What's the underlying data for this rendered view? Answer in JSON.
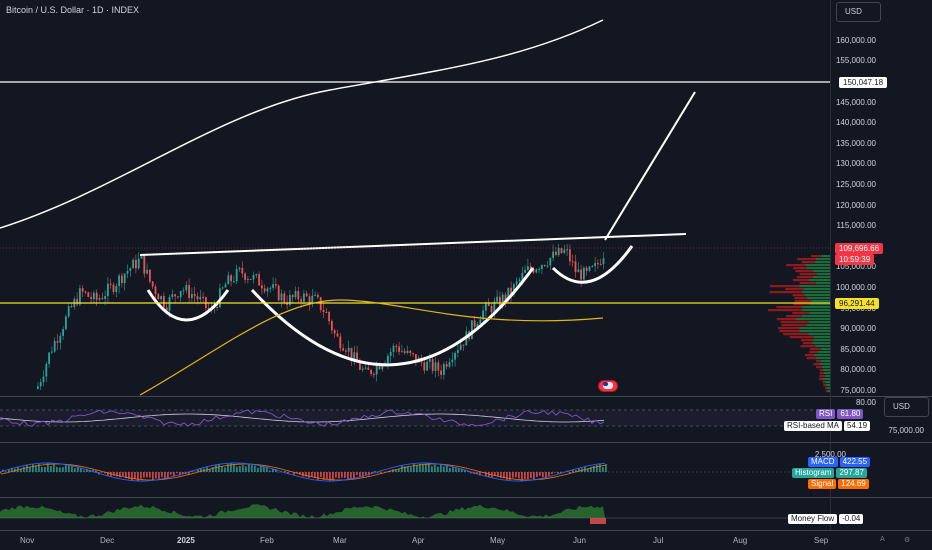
{
  "header": {
    "title": "Bitcoin / U.S. Dollar · 1D · INDEX",
    "currency_button": "USD",
    "currency_button_2": "USD"
  },
  "price_axis": {
    "labels": [
      "160,000.00",
      "155,000.00",
      "145,000.00",
      "140,000.00",
      "135,000.00",
      "130,000.00",
      "125,000.00",
      "120,000.00",
      "115,000.00",
      "110,000.00",
      "105,000.00",
      "100,000.00",
      "95,000.00",
      "90,000.00",
      "85,000.00",
      "80,000.00",
      "75,000.00"
    ],
    "tags": {
      "resistance": "150,047.18",
      "last_price": "109,696.66",
      "countdown": "10:59:39",
      "support": "96,291.44"
    }
  },
  "rsi_pane": {
    "level": "80.00",
    "below_label": "75,000.00",
    "rsi_label": "RSI",
    "rsi_value": "61.80",
    "ma_label": "RSI-based MA",
    "ma_value": "54.19"
  },
  "macd_pane": {
    "level": "2,500.00",
    "macd_label": "MACD",
    "macd_value": "422.55",
    "hist_label": "Histogram",
    "hist_value": "297.87",
    "signal_label": "Signal",
    "signal_value": "124.69"
  },
  "mfi_pane": {
    "label": "Money Flow",
    "value": "-0.04"
  },
  "time_axis": {
    "labels": [
      "Nov",
      "Dec",
      "2025",
      "Feb",
      "Mar",
      "Apr",
      "May",
      "Jun",
      "Jul",
      "Aug",
      "Sep"
    ]
  },
  "colors": {
    "background": "#131722",
    "up": "#26a69a",
    "down": "#ef5350",
    "support": "#f5e12b",
    "drawing": "#ffffff",
    "ma_yellow": "#e3b51c",
    "rsi_purple": "#7e57c2",
    "macd_blue": "#2962ff",
    "signal_orange": "#ff6d00",
    "mfi_green": "#1b5e20"
  },
  "icons": {
    "flag": "us-flag-icon",
    "corner_a": "alert-icon",
    "corner_b": "settings-icon"
  }
}
